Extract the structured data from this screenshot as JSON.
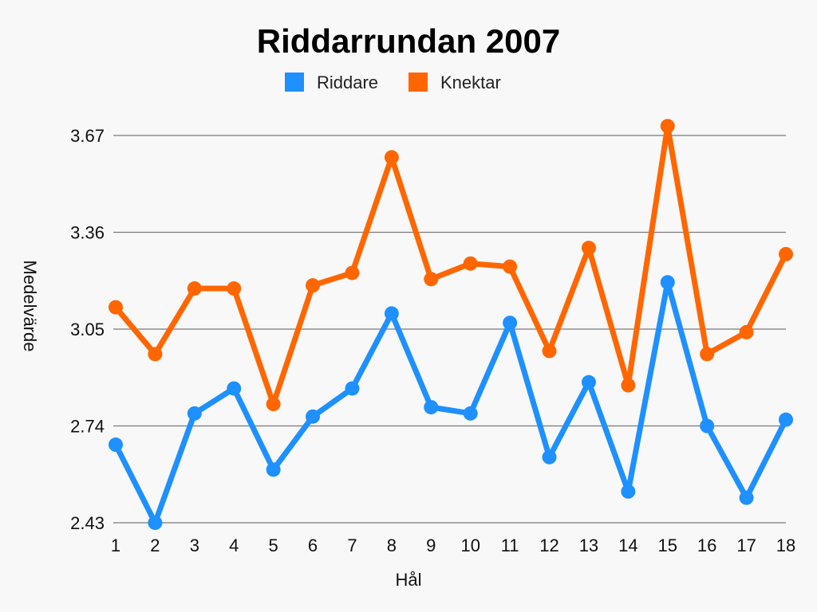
{
  "chart_data": {
    "type": "line",
    "title": "Riddarrundan 2007",
    "xlabel": "Hål",
    "ylabel": "Medelvärde",
    "categories": [
      "1",
      "2",
      "3",
      "4",
      "5",
      "6",
      "7",
      "8",
      "9",
      "10",
      "11",
      "12",
      "13",
      "14",
      "15",
      "16",
      "17",
      "18"
    ],
    "yticks": [
      2.43,
      2.74,
      3.05,
      3.36,
      3.67
    ],
    "ytick_labels": [
      "2.43",
      "2.74",
      "3.05",
      "3.36",
      "3.67"
    ],
    "ylim": [
      2.43,
      3.67
    ],
    "grid": true,
    "legend_position": "top-center",
    "series": [
      {
        "name": "Riddare",
        "color": "#1e90ff",
        "values": [
          2.68,
          2.43,
          2.78,
          2.86,
          2.6,
          2.77,
          2.86,
          3.1,
          2.8,
          2.78,
          3.07,
          2.64,
          2.88,
          2.53,
          3.2,
          2.74,
          2.51,
          2.76
        ]
      },
      {
        "name": "Knektar",
        "color": "#ff6600",
        "values": [
          3.12,
          2.97,
          3.18,
          3.18,
          2.81,
          3.19,
          3.23,
          3.6,
          3.21,
          3.26,
          3.25,
          2.98,
          3.31,
          2.87,
          3.7,
          2.97,
          3.04,
          3.29
        ]
      }
    ]
  }
}
